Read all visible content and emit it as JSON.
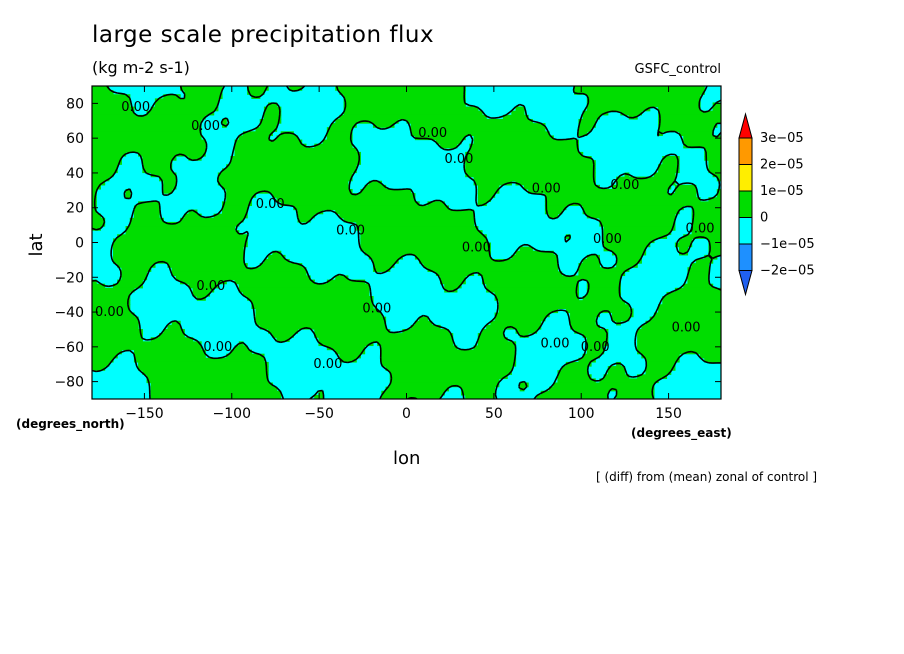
{
  "chart_data": {
    "type": "contour-map",
    "title": "large scale precipitation flux",
    "subtitle": "(kg m-2 s-1)",
    "model": "GSFC_control",
    "note": "[ (diff) from (mean) zonal of control ]",
    "xlabel": "lon",
    "ylabel": "lat",
    "x_unit": "(degrees_east)",
    "y_unit": "(degrees_north)",
    "xlim": [
      -180,
      180
    ],
    "ylim": [
      -90,
      90
    ],
    "x_ticks": [
      -150,
      -100,
      -50,
      0,
      50,
      100,
      150
    ],
    "x_tick_labels": [
      "−150",
      "−100",
      "−50",
      "0",
      "50",
      "100",
      "150"
    ],
    "y_ticks": [
      80,
      60,
      40,
      20,
      0,
      -20,
      -40,
      -60,
      -80
    ],
    "y_tick_labels": [
      "80",
      "60",
      "40",
      "20",
      "0",
      "−20",
      "−40",
      "−60",
      "−80"
    ],
    "colorbar": {
      "labels": [
        "3e−05",
        "2e−05",
        "1e−05",
        "0",
        "−1e−05",
        "−2e−05"
      ],
      "colors": [
        "#ff0000",
        "#ff9900",
        "#ffee00",
        "#00dd00",
        "#00ffff",
        "#1e90ff",
        "#2060f0"
      ]
    },
    "contour_labels": [
      {
        "text": "0.00",
        "lon": -155,
        "lat": 78
      },
      {
        "text": "0.00",
        "lon": -115,
        "lat": 67
      },
      {
        "text": "0.00",
        "lon": 15,
        "lat": 63
      },
      {
        "text": "0.00",
        "lon": 30,
        "lat": 48
      },
      {
        "text": "0.00",
        "lon": 80,
        "lat": 31
      },
      {
        "text": "0.00",
        "lon": 125,
        "lat": 33
      },
      {
        "text": "0.00",
        "lon": -78,
        "lat": 22
      },
      {
        "text": "0.00",
        "lon": -32,
        "lat": 7
      },
      {
        "text": "0.00",
        "lon": 40,
        "lat": -3
      },
      {
        "text": "0.00",
        "lon": 115,
        "lat": 2
      },
      {
        "text": "0.00",
        "lon": 168,
        "lat": 8
      },
      {
        "text": "0.00",
        "lon": -112,
        "lat": -25
      },
      {
        "text": "0.00",
        "lon": -170,
        "lat": -40
      },
      {
        "text": "0.00",
        "lon": -17,
        "lat": -38
      },
      {
        "text": "0.00",
        "lon": -108,
        "lat": -60
      },
      {
        "text": "0.00",
        "lon": 85,
        "lat": -58
      },
      {
        "text": "0.00",
        "lon": 108,
        "lat": -60
      },
      {
        "text": "0.00",
        "lon": 160,
        "lat": -49
      },
      {
        "text": "0.00",
        "lon": -45,
        "lat": -70
      }
    ],
    "colors": {
      "positive": "#00dd00",
      "negative": "#00ffff",
      "background": "#ffffff"
    }
  }
}
